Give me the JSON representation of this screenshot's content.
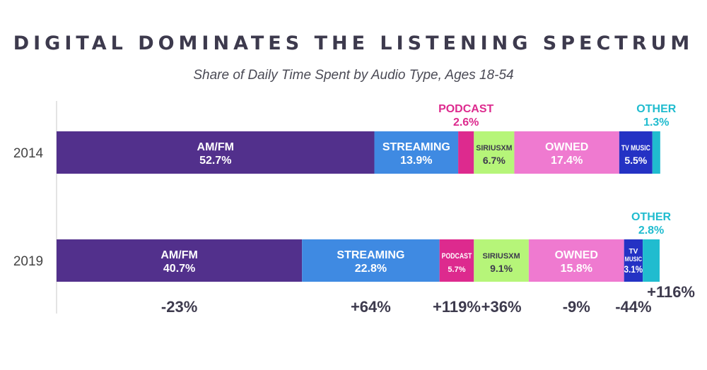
{
  "chart_data": {
    "type": "bar",
    "orientation": "horizontal",
    "stacked": true,
    "title": "DIGITAL DOMINATES THE LISTENING SPECTRUM",
    "subtitle": "Share of Daily Time Spent by Audio Type, Ages 18-54",
    "categories": [
      "2014",
      "2019"
    ],
    "series": [
      {
        "name": "AM/FM",
        "labels": [
          "AM/FM",
          "AM/FM"
        ],
        "values": [
          52.7,
          40.7
        ],
        "value_labels": [
          "52.7%",
          "40.7%"
        ],
        "color": "#52308c",
        "change": "-23%"
      },
      {
        "name": "STREAMING",
        "labels": [
          "STREAMING",
          "STREAMING"
        ],
        "values": [
          13.9,
          22.8
        ],
        "value_labels": [
          "13.9%",
          "22.8%"
        ],
        "color": "#3f8ae2",
        "change": "+64%"
      },
      {
        "name": "PODCAST",
        "labels": [
          "PODCAST",
          "PODCAST"
        ],
        "values": [
          2.6,
          5.7
        ],
        "value_labels": [
          "2.6%",
          "5.7%"
        ],
        "color": "#dd2a8e",
        "change": "+119%"
      },
      {
        "name": "SIRIUSXM",
        "labels": [
          "SIRIUSXM",
          "SIRIUSXM"
        ],
        "values": [
          6.7,
          9.1
        ],
        "value_labels": [
          "6.7%",
          "9.1%"
        ],
        "color": "#b6f579",
        "change": "+36%"
      },
      {
        "name": "OWNED",
        "labels": [
          "OWNED",
          "OWNED"
        ],
        "values": [
          17.4,
          15.8
        ],
        "value_labels": [
          "17.4%",
          "15.8%"
        ],
        "color": "#ef7ad0",
        "change": "-9%"
      },
      {
        "name": "TV MUSIC",
        "labels": [
          "TV MUSIC",
          "TV MUSIC"
        ],
        "values": [
          5.5,
          3.1
        ],
        "value_labels": [
          "5.5%",
          "3.1%"
        ],
        "color": "#2432c4",
        "change": "-44%"
      },
      {
        "name": "OTHER",
        "labels": [
          "OTHER",
          "OTHER"
        ],
        "values": [
          1.3,
          2.8
        ],
        "value_labels": [
          "1.3%",
          "2.8%"
        ],
        "color": "#20bccf",
        "change": "+116%"
      }
    ],
    "xlim": [
      0,
      100
    ],
    "legend": "none",
    "grid": false
  }
}
